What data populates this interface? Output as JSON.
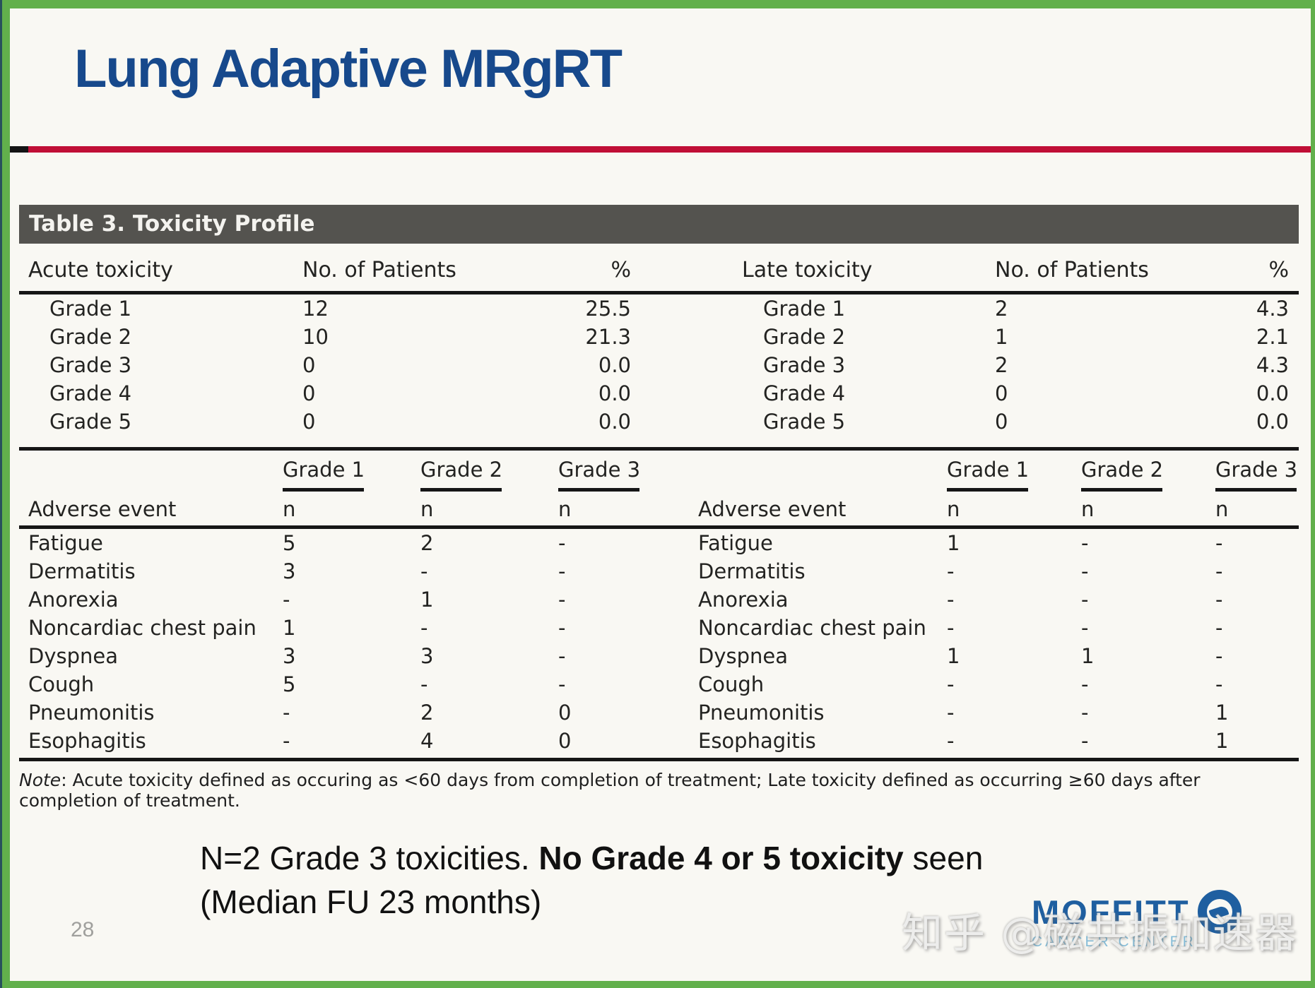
{
  "slide": {
    "title": "Lung Adaptive MRgRT",
    "page_number": "28"
  },
  "table3": {
    "caption": "Table 3. Toxicity Profile",
    "summary_header": {
      "acute": "Acute toxicity",
      "late": "Late toxicity",
      "patients": "No. of Patients",
      "percent": "%"
    },
    "summary_rows": [
      [
        "Grade 1",
        "12",
        "25.5",
        "Grade 1",
        "2",
        "4.3"
      ],
      [
        "Grade 2",
        "10",
        "21.3",
        "Grade 2",
        "1",
        "2.1"
      ],
      [
        "Grade 3",
        "0",
        "0.0",
        "Grade 3",
        "2",
        "4.3"
      ],
      [
        "Grade 4",
        "0",
        "0.0",
        "Grade 4",
        "0",
        "0.0"
      ],
      [
        "Grade 5",
        "0",
        "0.0",
        "Grade 5",
        "0",
        "0.0"
      ]
    ],
    "grade_headers": [
      "Grade 1",
      "Grade 2",
      "Grade 3"
    ],
    "adverse_label": "Adverse event",
    "n_label": "n",
    "adverse_rows": [
      [
        "Fatigue",
        "5",
        "2",
        "-",
        "Fatigue",
        "1",
        "-",
        "-"
      ],
      [
        "Dermatitis",
        "3",
        "-",
        "-",
        "Dermatitis",
        "-",
        "-",
        "-"
      ],
      [
        "Anorexia",
        "-",
        "1",
        "-",
        "Anorexia",
        "-",
        "-",
        "-"
      ],
      [
        "Noncardiac chest pain",
        "1",
        "-",
        "-",
        "Noncardiac chest pain",
        "-",
        "-",
        "-"
      ],
      [
        "Dyspnea",
        "3",
        "3",
        "-",
        "Dyspnea",
        "1",
        "1",
        "-"
      ],
      [
        "Cough",
        "5",
        "-",
        "-",
        "Cough",
        "-",
        "-",
        "-"
      ],
      [
        "Pneumonitis",
        "-",
        "2",
        "0",
        "Pneumonitis",
        "-",
        "-",
        "1"
      ],
      [
        "Esophagitis",
        "-",
        "4",
        "0",
        "Esophagitis",
        "-",
        "-",
        "1"
      ]
    ],
    "note_label": "Note",
    "note_text": ": Acute toxicity defined as occuring as <60 days from completion of treatment; Late toxicity defined as occurring ≥60 days after completion of treatment."
  },
  "statement": {
    "line1_pre": "N=2 Grade 3 toxicities. ",
    "line1_bold": "No Grade 4 or 5 toxicity",
    "line1_post": " seen",
    "line2": "(Median FU 23 months)"
  },
  "footer": {
    "watermark": "知乎 @磁共振加速器",
    "logo_text": "MOFFITT",
    "logo_subtext": "CANCER CENTER"
  },
  "colors": {
    "frame_green": "#62b04c",
    "edge_teal": "#28515c",
    "title_navy": "#17498c",
    "divider_red": "#c00f36",
    "caption_bg": "#54534f",
    "logo_navy": "#1f5fa0",
    "logo_lightblue": "#85bcd8"
  }
}
